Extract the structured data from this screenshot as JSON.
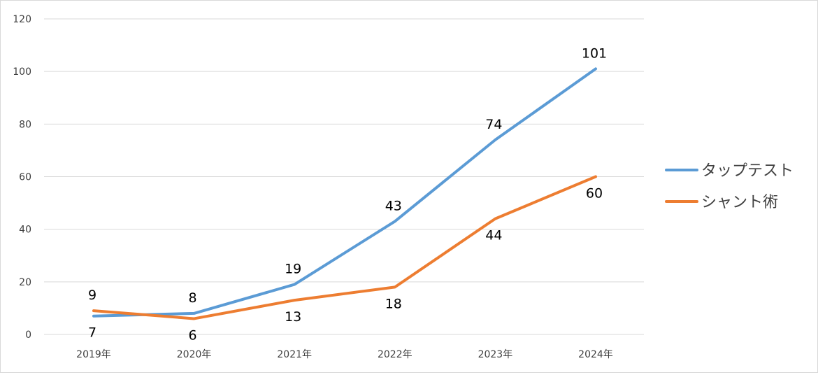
{
  "chart_data": {
    "type": "line",
    "categories": [
      "2019年",
      "2020年",
      "2021年",
      "2022年",
      "2023年",
      "2024年"
    ],
    "series": [
      {
        "name": "タップテスト",
        "color": "#5B9BD5",
        "values": [
          7,
          8,
          19,
          43,
          74,
          101
        ]
      },
      {
        "name": "シャント術",
        "color": "#ED7D31",
        "values": [
          9,
          6,
          13,
          18,
          44,
          60
        ]
      }
    ],
    "ylim": [
      0,
      120
    ],
    "yticks": [
      0,
      20,
      40,
      60,
      80,
      100,
      120
    ],
    "grid": true,
    "legend": "right"
  }
}
